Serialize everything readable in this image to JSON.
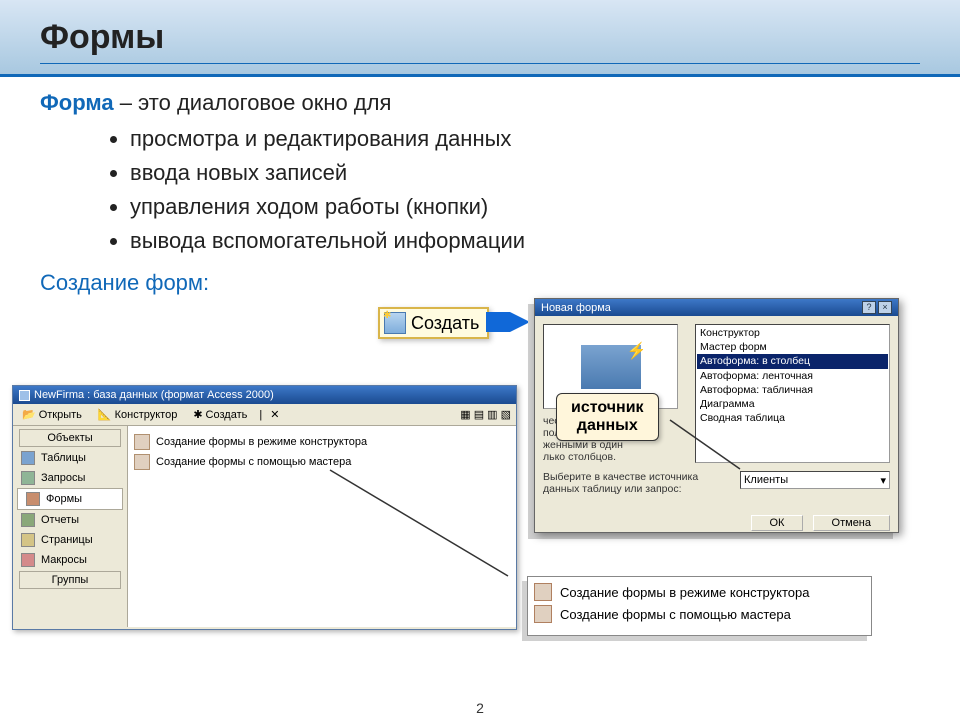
{
  "header": {
    "title": "Формы"
  },
  "definition": {
    "lead": "Форма",
    "rest": " – это диалоговое окно для",
    "bullets": [
      "просмотра и редактирования данных",
      "ввода новых записей",
      "управления ходом работы (кнопки)",
      "вывода вспомогательной информации"
    ]
  },
  "subheader": "Создание форм:",
  "create_button": {
    "label": "Создать"
  },
  "arrow_color": "#1068d8",
  "db_window": {
    "title": "NewFirma : база данных (формат Access 2000)",
    "toolbar": {
      "open": "Открыть",
      "design": "Конструктор",
      "create": "Создать"
    },
    "side_header_top": "Объекты",
    "side_header_bottom": "Группы",
    "side_items": [
      {
        "label": "Таблицы",
        "ico": "ico-tbl"
      },
      {
        "label": "Запросы",
        "ico": "ico-qry"
      },
      {
        "label": "Формы",
        "ico": "ico-frm",
        "selected": true
      },
      {
        "label": "Отчеты",
        "ico": "ico-rpt"
      },
      {
        "label": "Страницы",
        "ico": "ico-pag"
      },
      {
        "label": "Макросы",
        "ico": "ico-mcr"
      }
    ],
    "main_rows": [
      "Создание формы в режиме конструктора",
      "Создание формы с помощью мастера"
    ]
  },
  "dialog": {
    "title": "Новая форма",
    "close_help": "?",
    "close_x": "×",
    "list": [
      "Конструктор",
      "Мастер форм",
      "Автоформа: в столбец",
      "Автоформа: ленточная",
      "Автоформа: табличная",
      "Диаграмма",
      "Сводная таблица"
    ],
    "selected_index": 2,
    "desc_lines": [
      "ческое создание",
      "полями,",
      "женными в один",
      "лько столбцов."
    ],
    "source_label": "Выберите в качестве источника данных таблицу или запрос:",
    "source_value": "Клиенты",
    "ok": "ОК",
    "cancel": "Отмена"
  },
  "callout1": {
    "line1": "источник",
    "line2": "данных"
  },
  "listbox_rows": [
    "Создание формы в режиме конструктора",
    "Создание формы с помощью мастера"
  ],
  "page_number": "2",
  "colors": {
    "header_grad_top": "#d8e6f4",
    "header_grad_bot": "#a8c8e0",
    "accent": "#1068b8",
    "callout_bg": "#fff6db",
    "win_titlebar_top": "#3d78c8",
    "win_titlebar_bot": "#1a4a90",
    "win_face": "#ece9d8"
  }
}
